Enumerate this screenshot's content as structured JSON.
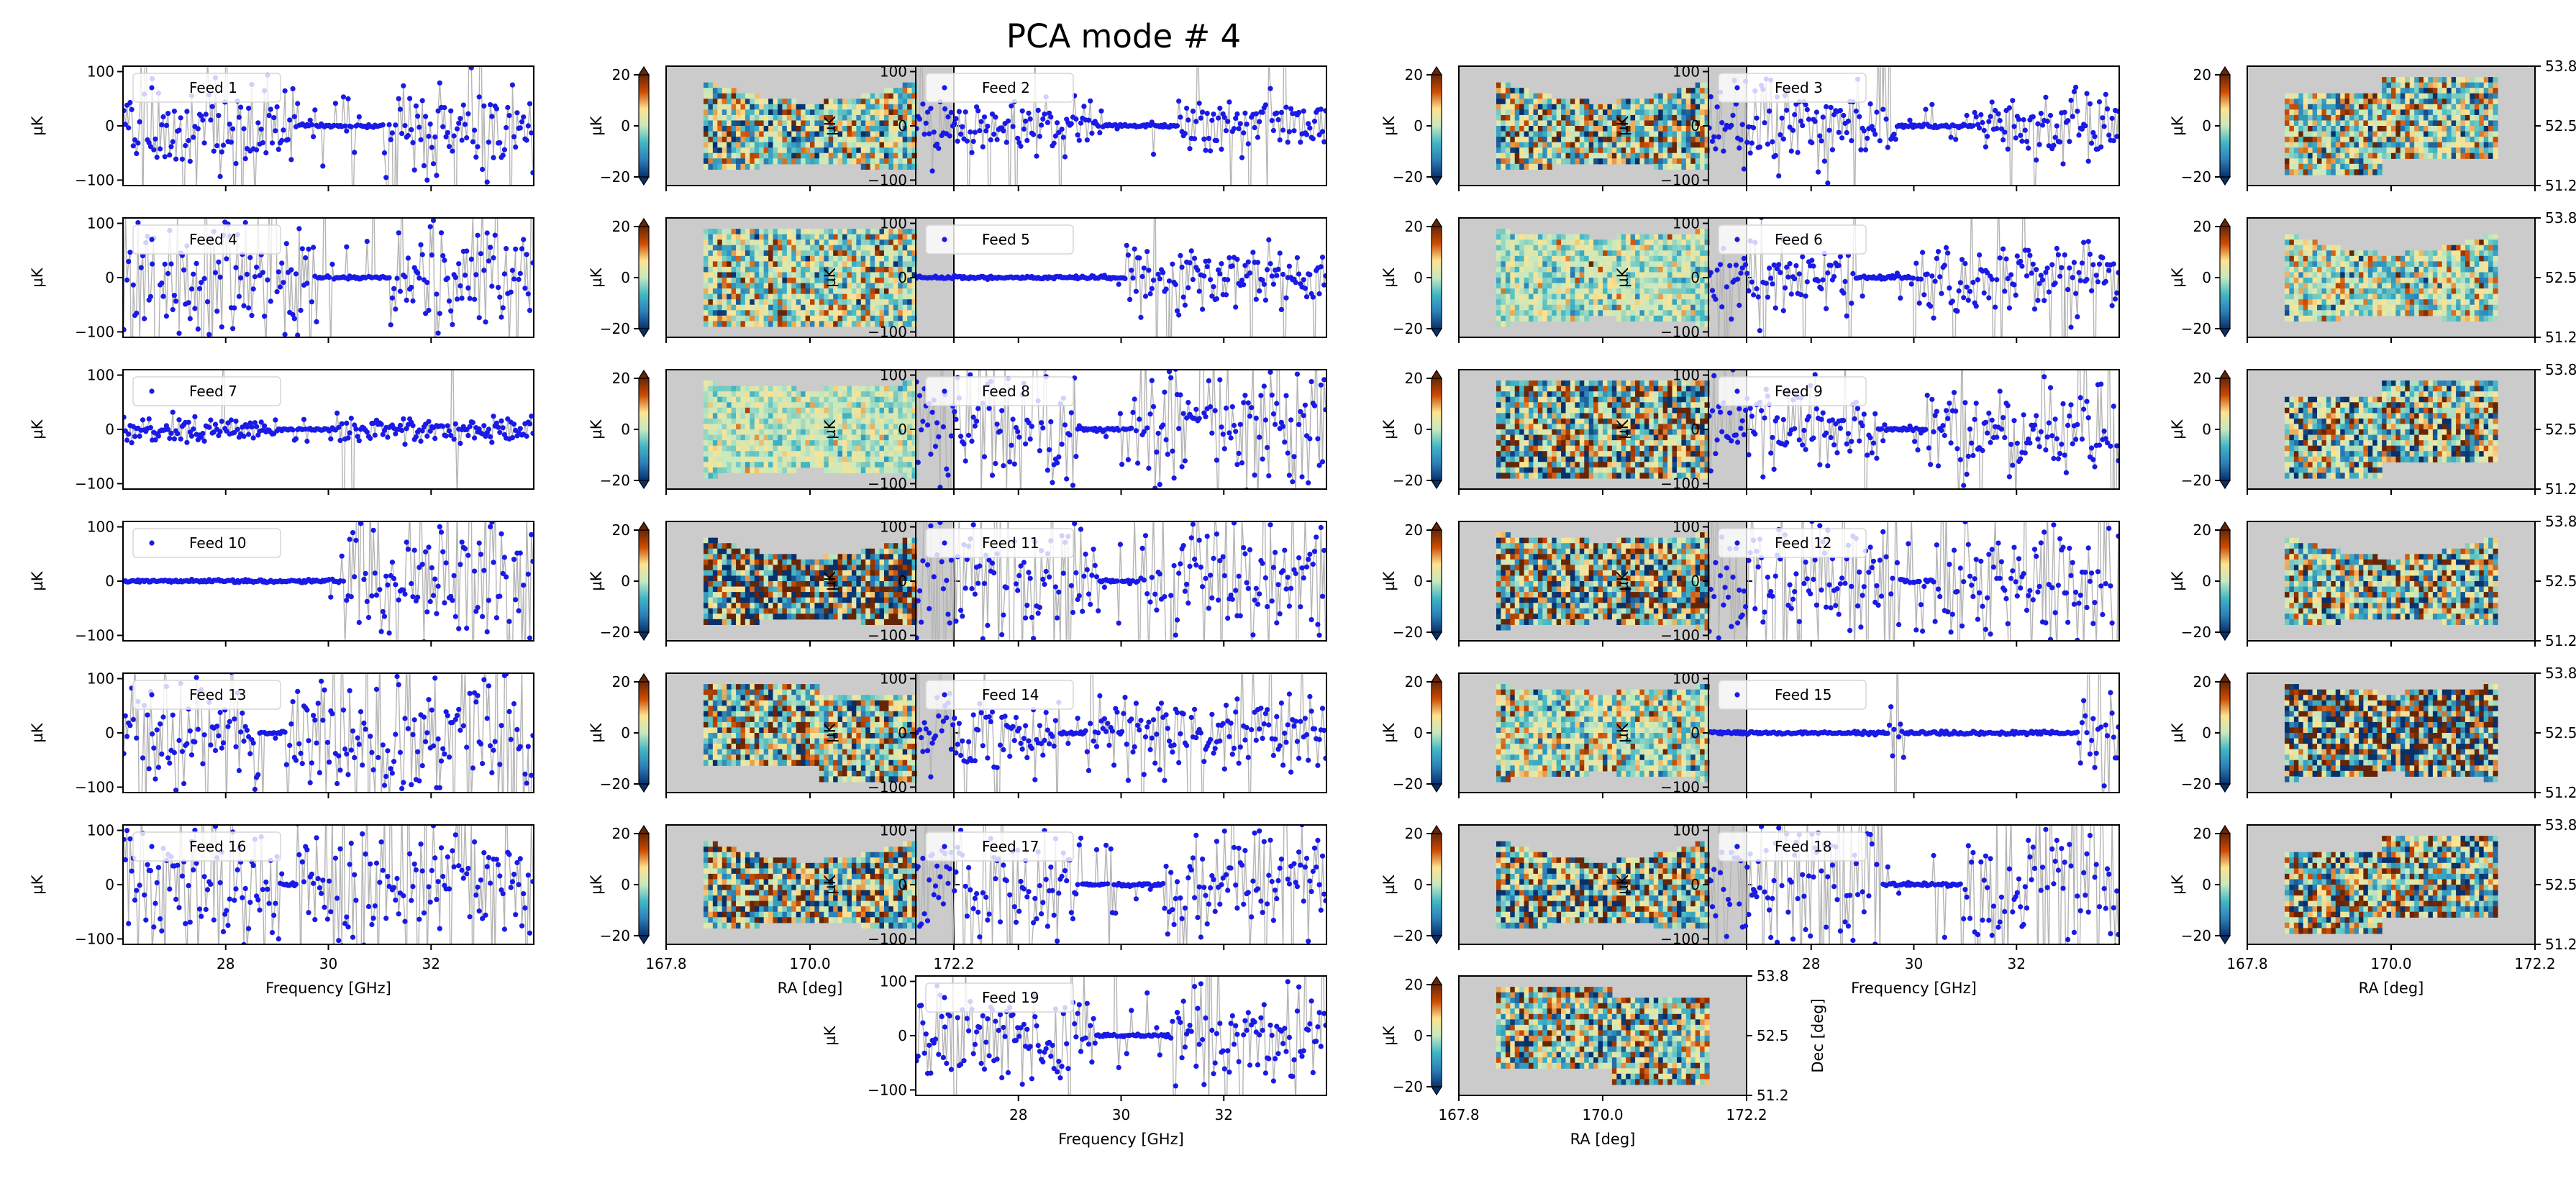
{
  "figure": {
    "title": "PCA mode # 4"
  },
  "chart_data": {
    "type": "scatter",
    "title": "PCA mode # 4",
    "spectra": {
      "xlabel": "Frequency [GHz]",
      "ylabel": "µK",
      "xlim": [
        26.0,
        34.0
      ],
      "ylim": [
        -110,
        110
      ],
      "xticks": [
        "28",
        "30",
        "32"
      ],
      "yticks": [
        "100",
        "0",
        "−100"
      ]
    },
    "maps": {
      "xlabel": "RA [deg]",
      "ylabel": "Dec [deg]",
      "xticks": [
        "167.8",
        "170.0",
        "172.2"
      ],
      "yticks": [
        "53.8",
        "52.5",
        "51.2"
      ],
      "colorbar_label": "µK",
      "colorbar_range": [
        -20,
        20
      ],
      "colorbar_ticks": [
        "20",
        "0",
        "−20"
      ],
      "colormap": [
        "#08306b",
        "#2c7fb8",
        "#41b6c4",
        "#c7e9c0",
        "#fee391",
        "#cc4c02",
        "#662506"
      ],
      "background": "#cbcbcb"
    },
    "feeds": [
      {
        "feed": 1,
        "label": "Feed 1",
        "spectrum_noise_uK": 45,
        "map_rms_uK": 11
      },
      {
        "feed": 2,
        "label": "Feed 2",
        "spectrum_noise_uK": 25,
        "map_rms_uK": 12
      },
      {
        "feed": 3,
        "label": "Feed 3",
        "spectrum_noise_uK": 38,
        "map_rms_uK": 11
      },
      {
        "feed": 4,
        "label": "Feed 4",
        "spectrum_noise_uK": 60,
        "map_rms_uK": 9
      },
      {
        "feed": 5,
        "label": "Feed 5",
        "spectrum_noise_uK": 30,
        "map_rms_uK": 5
      },
      {
        "feed": 6,
        "label": "Feed 6",
        "spectrum_noise_uK": 35,
        "map_rms_uK": 8
      },
      {
        "feed": 7,
        "label": "Feed 7",
        "spectrum_noise_uK": 12,
        "map_rms_uK": 4
      },
      {
        "feed": 8,
        "label": "Feed 8",
        "spectrum_noise_uK": 60,
        "map_rms_uK": 14
      },
      {
        "feed": 9,
        "label": "Feed 9",
        "spectrum_noise_uK": 40,
        "map_rms_uK": 12
      },
      {
        "feed": 10,
        "label": "Feed 10",
        "spectrum_noise_uK": 65,
        "map_rms_uK": 22
      },
      {
        "feed": 11,
        "label": "Feed 11",
        "spectrum_noise_uK": 70,
        "map_rms_uK": 14
      },
      {
        "feed": 12,
        "label": "Feed 12",
        "spectrum_noise_uK": 70,
        "map_rms_uK": 12
      },
      {
        "feed": 13,
        "label": "Feed 13",
        "spectrum_noise_uK": 65,
        "map_rms_uK": 12
      },
      {
        "feed": 14,
        "label": "Feed 14",
        "spectrum_noise_uK": 35,
        "map_rms_uK": 8
      },
      {
        "feed": 15,
        "label": "Feed 15",
        "spectrum_noise_uK": 45,
        "map_rms_uK": 20
      },
      {
        "feed": 16,
        "label": "Feed 16",
        "spectrum_noise_uK": 70,
        "map_rms_uK": 14
      },
      {
        "feed": 17,
        "label": "Feed 17",
        "spectrum_noise_uK": 55,
        "map_rms_uK": 14
      },
      {
        "feed": 18,
        "label": "Feed 18",
        "spectrum_noise_uK": 75,
        "map_rms_uK": 14
      },
      {
        "feed": 19,
        "label": "Feed 19",
        "spectrum_noise_uK": 45,
        "map_rms_uK": 12
      }
    ]
  }
}
